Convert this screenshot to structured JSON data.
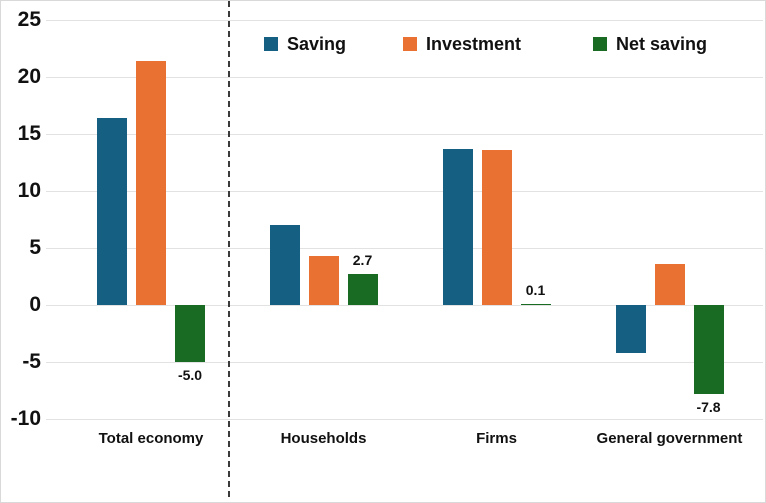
{
  "chart_data": {
    "type": "bar",
    "title": "",
    "xlabel": "",
    "ylabel": "",
    "categories": [
      "Total economy",
      "Households",
      "Firms",
      "General government"
    ],
    "series": [
      {
        "name": "Saving",
        "color": "#156082",
        "values": [
          16.4,
          7.0,
          13.7,
          -4.2
        ]
      },
      {
        "name": "Investment",
        "color": "#E97132",
        "values": [
          21.4,
          4.3,
          13.6,
          3.6
        ]
      },
      {
        "name": "Net saving",
        "color": "#196B24",
        "values": [
          -5.0,
          2.7,
          0.1,
          -7.8
        ],
        "data_labels": [
          "-5.0",
          "2.7",
          "0.1",
          "-7.8"
        ]
      }
    ],
    "ylim": [
      -10,
      25
    ],
    "ytick_step": 5,
    "yticks": [
      "25",
      "20",
      "15",
      "10",
      "5",
      "0",
      "-5",
      "-10"
    ],
    "ytick_values": [
      25,
      20,
      15,
      10,
      5,
      0,
      -5,
      -10
    ],
    "grid": true,
    "legend_position": "top",
    "separator_after_category": "Total economy"
  },
  "legend": {
    "items": [
      {
        "label": "Saving",
        "color": "#156082"
      },
      {
        "label": "Investment",
        "color": "#E97132"
      },
      {
        "label": "Net saving",
        "color": "#196B24"
      }
    ]
  },
  "colors": {
    "saving": "#156082",
    "investment": "#E97132",
    "net_saving": "#196B24",
    "gridline": "#e2e2e2",
    "text": "#111111"
  }
}
